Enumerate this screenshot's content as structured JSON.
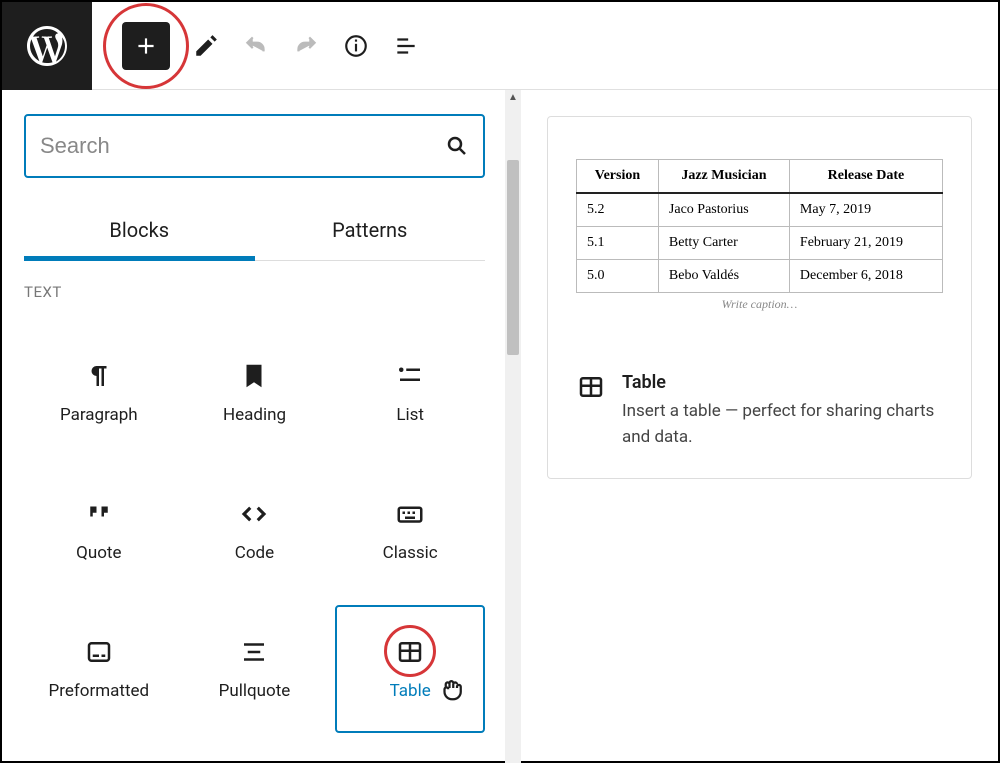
{
  "colors": {
    "accent": "#007cba",
    "highlight_ring": "#d63638",
    "toolbar_bg": "#1e1e1e",
    "border_grey": "#dddddd",
    "text_muted": "#777777"
  },
  "search": {
    "placeholder": "Search"
  },
  "tabs": {
    "blocks": "Blocks",
    "patterns": "Patterns"
  },
  "section": {
    "text_label": "TEXT"
  },
  "blocks": {
    "paragraph": "Paragraph",
    "heading": "Heading",
    "list": "List",
    "quote": "Quote",
    "code": "Code",
    "classic": "Classic",
    "preformatted": "Preformatted",
    "pullquote": "Pullquote",
    "table": "Table"
  },
  "preview": {
    "caption_placeholder": "Write caption…",
    "table": {
      "columns": [
        "Version",
        "Jazz Musician",
        "Release Date"
      ],
      "rows": [
        [
          "5.2",
          "Jaco Pastorius",
          "May 7, 2019"
        ],
        [
          "5.1",
          "Betty Carter",
          "February 21, 2019"
        ],
        [
          "5.0",
          "Bebo Valdés",
          "December 6, 2018"
        ]
      ]
    },
    "desc_title": "Table",
    "desc_text": "Insert a table — perfect for sharing charts and data."
  }
}
